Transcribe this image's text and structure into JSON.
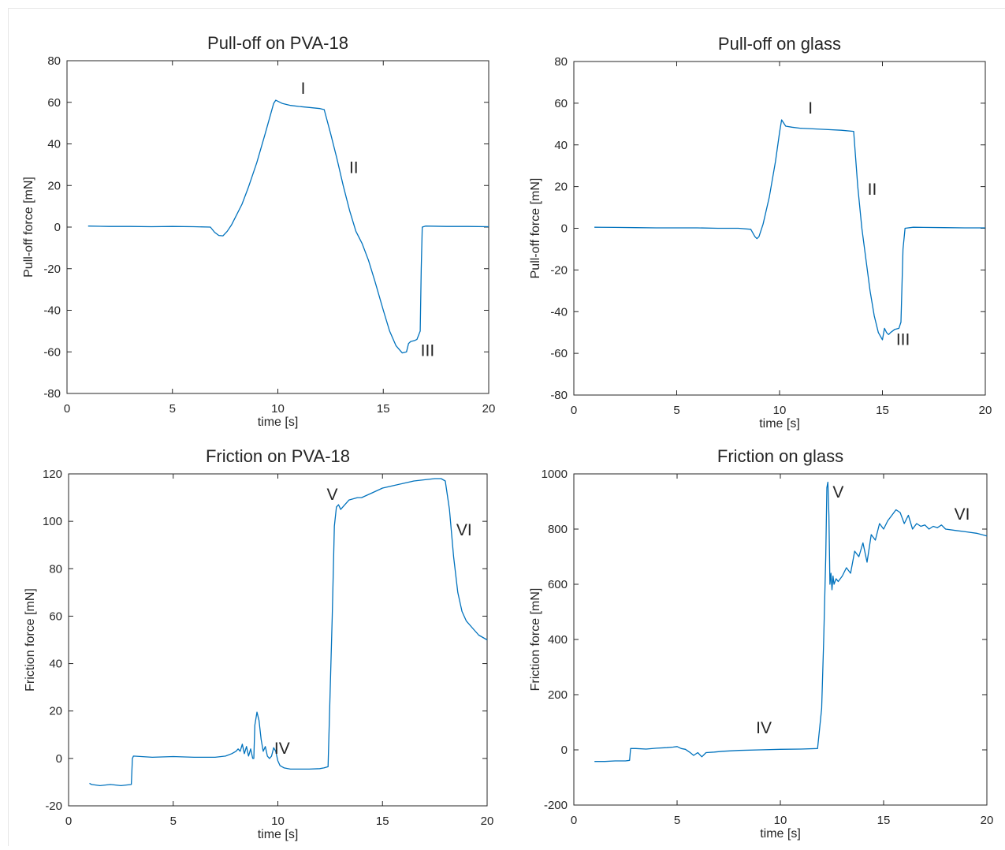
{
  "chart_data": [
    {
      "type": "line",
      "title": "Pull-off on PVA-18",
      "xlabel": "time [s]",
      "ylabel": "Pull-off force [mN]",
      "xlim": [
        0,
        20
      ],
      "ylim": [
        -80,
        80
      ],
      "xticks": [
        0,
        5,
        10,
        15,
        20
      ],
      "yticks": [
        -80,
        -60,
        -40,
        -20,
        0,
        20,
        40,
        60,
        80
      ],
      "color": "#0072BD",
      "grid": false,
      "series": [
        {
          "x": [
            1.0,
            2.0,
            3.0,
            4.0,
            5.0,
            6.0,
            6.8,
            7.0,
            7.2,
            7.4,
            7.6,
            7.8,
            8.0,
            8.3,
            8.6,
            9.0,
            9.4,
            9.8,
            9.9,
            10.2,
            10.6,
            11.0,
            11.5,
            12.0,
            12.2,
            12.5,
            12.8,
            13.1,
            13.4,
            13.7,
            14.0,
            14.3,
            14.6,
            15.0,
            15.3,
            15.6,
            15.9,
            16.1,
            16.2,
            16.3,
            16.5,
            16.6,
            16.75,
            16.8,
            16.85,
            17.0,
            18.0,
            19.0,
            20.0
          ],
          "y": [
            0.5,
            0.3,
            0.3,
            0.2,
            0.3,
            0.2,
            0.0,
            -2.5,
            -4.0,
            -4.2,
            -2.0,
            1.0,
            5.0,
            11.0,
            19.0,
            31.0,
            45.0,
            59.5,
            61.0,
            59.5,
            58.5,
            58.0,
            57.5,
            57.0,
            56.5,
            45.0,
            33.0,
            20.0,
            8.0,
            -2.0,
            -8.0,
            -16.0,
            -26.0,
            -40.0,
            -50.0,
            -57.0,
            -60.5,
            -60.0,
            -56.0,
            -55.0,
            -54.5,
            -54.0,
            -50.0,
            -20.0,
            0.0,
            0.5,
            0.3,
            0.3,
            0.2
          ]
        }
      ],
      "annotations": [
        {
          "text": "I",
          "x": 11.2,
          "y": 64
        },
        {
          "text": "II",
          "x": 13.6,
          "y": 26
        },
        {
          "text": "III",
          "x": 17.1,
          "y": -62
        }
      ]
    },
    {
      "type": "line",
      "title": "Pull-off on glass",
      "xlabel": "time [s]",
      "ylabel": "Pull-off force [mN]",
      "xlim": [
        0,
        20
      ],
      "ylim": [
        -80,
        80
      ],
      "xticks": [
        0,
        5,
        10,
        15,
        20
      ],
      "yticks": [
        -80,
        -60,
        -40,
        -20,
        0,
        20,
        40,
        60,
        80
      ],
      "color": "#0072BD",
      "grid": false,
      "series": [
        {
          "x": [
            1.0,
            2.0,
            3.0,
            4.0,
            5.0,
            6.0,
            7.0,
            8.0,
            8.6,
            8.8,
            8.9,
            9.0,
            9.2,
            9.5,
            9.8,
            10.0,
            10.1,
            10.3,
            10.6,
            11.0,
            12.0,
            13.0,
            13.6,
            13.8,
            14.0,
            14.2,
            14.4,
            14.6,
            14.8,
            15.0,
            15.1,
            15.2,
            15.3,
            15.4,
            15.6,
            15.8,
            15.9,
            16.0,
            16.1,
            16.5,
            17.0,
            18.0,
            19.0,
            20.0
          ],
          "y": [
            0.5,
            0.4,
            0.3,
            0.2,
            0.2,
            0.2,
            0.0,
            0.0,
            -0.5,
            -4.0,
            -5.0,
            -4.0,
            2.0,
            15.0,
            32.0,
            46.0,
            52.0,
            49.0,
            48.5,
            48.0,
            47.5,
            47.0,
            46.5,
            20.0,
            0.0,
            -15.0,
            -30.0,
            -42.0,
            -50.0,
            -53.5,
            -48.0,
            -50.0,
            -51.0,
            -50.0,
            -48.5,
            -48.0,
            -45.0,
            -10.0,
            0.0,
            0.5,
            0.4,
            0.3,
            0.2,
            0.2
          ]
        }
      ],
      "annotations": [
        {
          "text": "I",
          "x": 11.5,
          "y": 55
        },
        {
          "text": "II",
          "x": 14.5,
          "y": 16
        },
        {
          "text": "III",
          "x": 16.0,
          "y": -56
        }
      ]
    },
    {
      "type": "line",
      "title": "Friction on PVA-18",
      "xlabel": "time [s]",
      "ylabel": "Friction force [mN]",
      "xlim": [
        0,
        20
      ],
      "ylim": [
        -20,
        120
      ],
      "xticks": [
        0,
        5,
        10,
        15,
        20
      ],
      "yticks": [
        -20,
        0,
        20,
        40,
        60,
        80,
        100,
        120
      ],
      "color": "#0072BD",
      "grid": false,
      "series": [
        {
          "x": [
            1.0,
            1.1,
            1.5,
            2.0,
            2.5,
            3.0,
            3.05,
            3.1,
            4.0,
            5.0,
            6.0,
            7.0,
            7.5,
            7.8,
            8.0,
            8.1,
            8.2,
            8.3,
            8.4,
            8.5,
            8.6,
            8.7,
            8.8,
            8.85,
            8.9,
            9.0,
            9.1,
            9.2,
            9.3,
            9.4,
            9.5,
            9.6,
            9.7,
            9.8,
            9.9,
            10.0,
            10.1,
            10.3,
            10.6,
            11.0,
            11.5,
            12.0,
            12.2,
            12.4,
            12.6,
            12.7,
            12.8,
            12.9,
            13.0,
            13.2,
            13.4,
            13.6,
            13.8,
            14.0,
            14.5,
            15.0,
            15.5,
            16.0,
            16.5,
            17.0,
            17.5,
            17.8,
            18.0,
            18.2,
            18.4,
            18.6,
            18.8,
            19.0,
            19.3,
            19.6,
            20.0
          ],
          "y": [
            -10.5,
            -11.0,
            -11.5,
            -11.0,
            -11.5,
            -11.0,
            0.0,
            1.0,
            0.5,
            0.8,
            0.5,
            0.5,
            1.0,
            2.0,
            3.0,
            4.0,
            3.0,
            6.0,
            2.0,
            5.0,
            1.0,
            4.0,
            0.0,
            0.0,
            14.0,
            19.5,
            16.0,
            8.0,
            3.0,
            5.0,
            1.0,
            0.0,
            1.0,
            4.5,
            3.0,
            -1.0,
            -3.0,
            -4.0,
            -4.5,
            -4.5,
            -4.5,
            -4.3,
            -4.0,
            -3.5,
            60.0,
            98.0,
            106.0,
            107.0,
            105.0,
            107.0,
            109.0,
            109.5,
            110.0,
            110.0,
            112.0,
            114.0,
            115.0,
            116.0,
            117.0,
            117.5,
            118.0,
            118.0,
            117.0,
            105.0,
            85.0,
            70.0,
            62.0,
            58.0,
            55.0,
            52.0,
            50.0
          ]
        }
      ],
      "annotations": [
        {
          "text": "V",
          "x": 12.6,
          "y": 109
        },
        {
          "text": "VI",
          "x": 18.9,
          "y": 94
        },
        {
          "text": "IV",
          "x": 10.2,
          "y": 2
        }
      ]
    },
    {
      "type": "line",
      "title": "Friction on glass",
      "xlabel": "time [s]",
      "ylabel": "Friction force [mN]",
      "xlim": [
        0,
        20
      ],
      "ylim": [
        -200,
        1000
      ],
      "xticks": [
        0,
        5,
        10,
        15,
        20
      ],
      "yticks": [
        -200,
        0,
        200,
        400,
        600,
        800,
        1000
      ],
      "color": "#0072BD",
      "grid": false,
      "series": [
        {
          "x": [
            1.0,
            1.5,
            2.0,
            2.5,
            2.7,
            2.75,
            3.0,
            3.5,
            4.0,
            4.5,
            4.8,
            5.0,
            5.2,
            5.4,
            5.6,
            5.8,
            6.0,
            6.2,
            6.4,
            6.8,
            7.2,
            8.0,
            9.0,
            10.0,
            11.0,
            11.8,
            12.0,
            12.1,
            12.2,
            12.25,
            12.3,
            12.35,
            12.4,
            12.45,
            12.5,
            12.55,
            12.6,
            12.7,
            12.8,
            13.0,
            13.2,
            13.4,
            13.6,
            13.8,
            14.0,
            14.2,
            14.4,
            14.6,
            14.8,
            15.0,
            15.2,
            15.4,
            15.6,
            15.8,
            16.0,
            16.2,
            16.4,
            16.6,
            16.8,
            17.0,
            17.2,
            17.4,
            17.6,
            17.8,
            18.0,
            18.5,
            19.0,
            19.5,
            20.0
          ],
          "y": [
            -42,
            -42,
            -40,
            -40,
            -38,
            5,
            5,
            3,
            6,
            8,
            10,
            12,
            5,
            2,
            -8,
            -20,
            -10,
            -25,
            -10,
            -8,
            -5,
            -2,
            0,
            2,
            3,
            5,
            150,
            400,
            700,
            950,
            970,
            850,
            600,
            640,
            580,
            630,
            600,
            620,
            610,
            630,
            660,
            640,
            720,
            700,
            750,
            680,
            780,
            760,
            820,
            800,
            830,
            850,
            870,
            860,
            820,
            850,
            800,
            820,
            810,
            815,
            800,
            810,
            805,
            815,
            800,
            795,
            790,
            785,
            775
          ]
        }
      ],
      "annotations": [
        {
          "text": "V",
          "x": 12.8,
          "y": 915
        },
        {
          "text": "VI",
          "x": 18.8,
          "y": 835
        },
        {
          "text": "IV",
          "x": 9.2,
          "y": 60
        }
      ]
    }
  ]
}
